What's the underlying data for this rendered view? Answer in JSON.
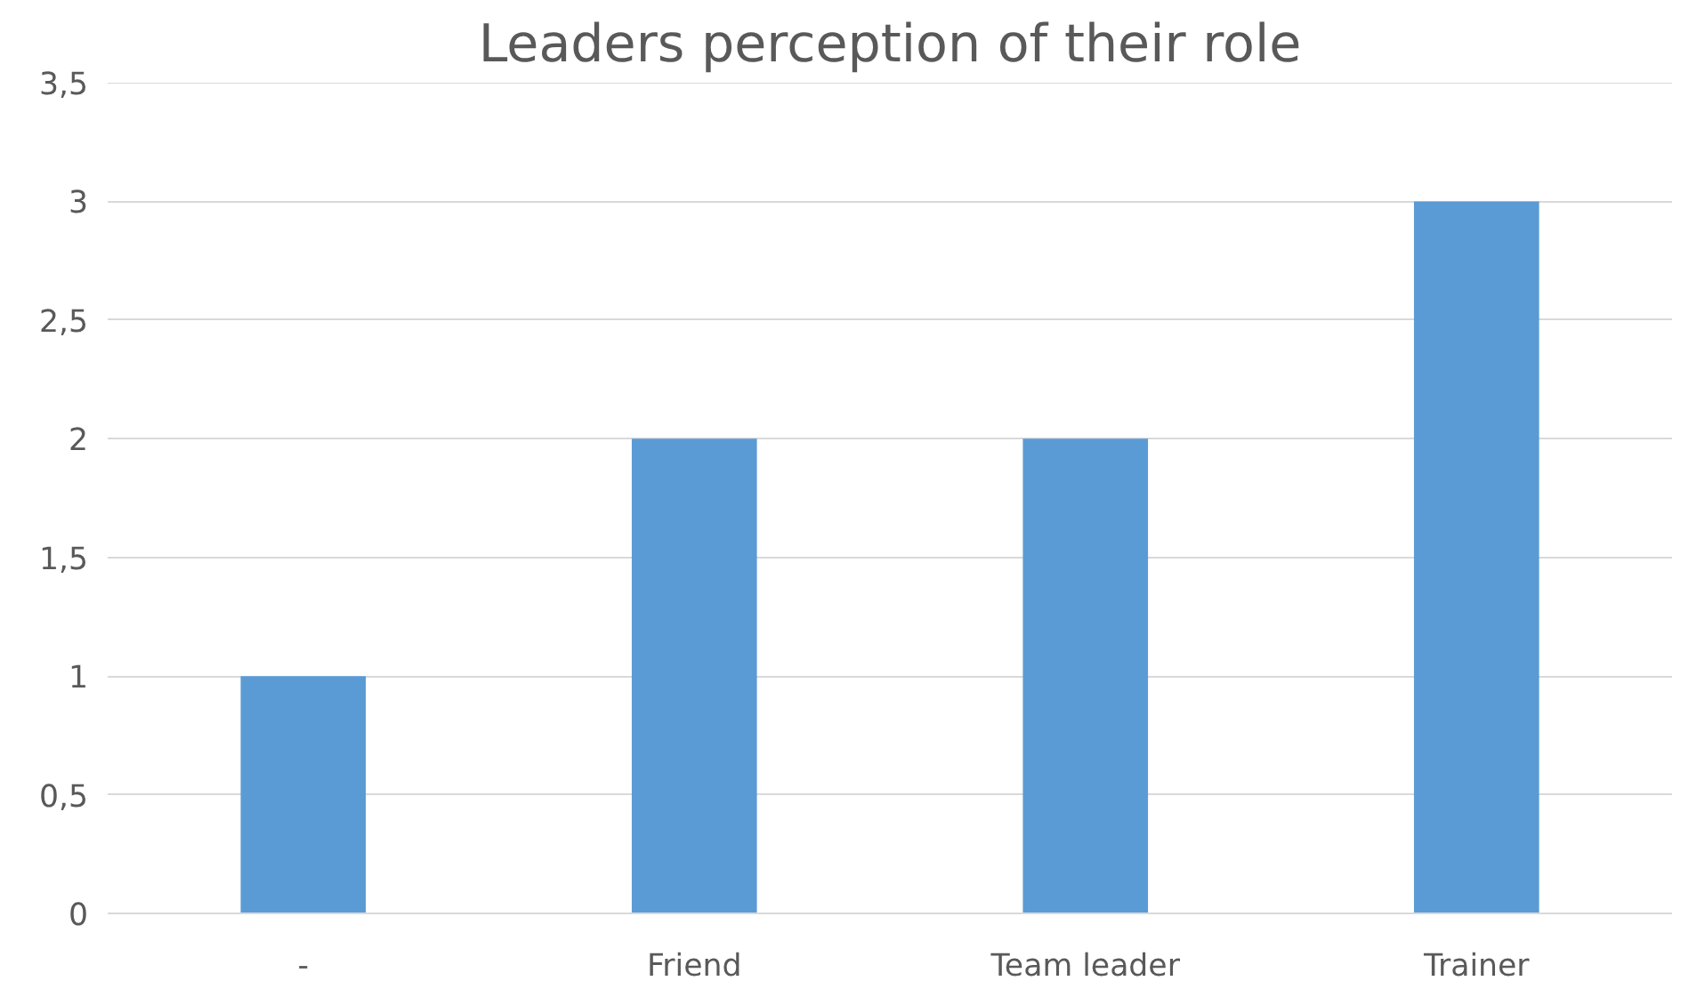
{
  "chart_data": {
    "type": "bar",
    "title": "Leaders perception of their role",
    "categories": [
      "-",
      "Friend",
      "Team leader",
      "Trainer"
    ],
    "values": [
      1,
      2,
      2,
      3
    ],
    "color": "#5b9bd5",
    "ylim": [
      0,
      3.5
    ],
    "yticks": [
      0,
      {
        "value": 0.5,
        "label": "0,5"
      },
      1,
      {
        "value": 1.5,
        "label": "1,5"
      },
      2,
      {
        "value": 2.5,
        "label": "2,5"
      },
      3,
      {
        "value": 3.5,
        "label": "3,5"
      }
    ],
    "grid": "y"
  }
}
